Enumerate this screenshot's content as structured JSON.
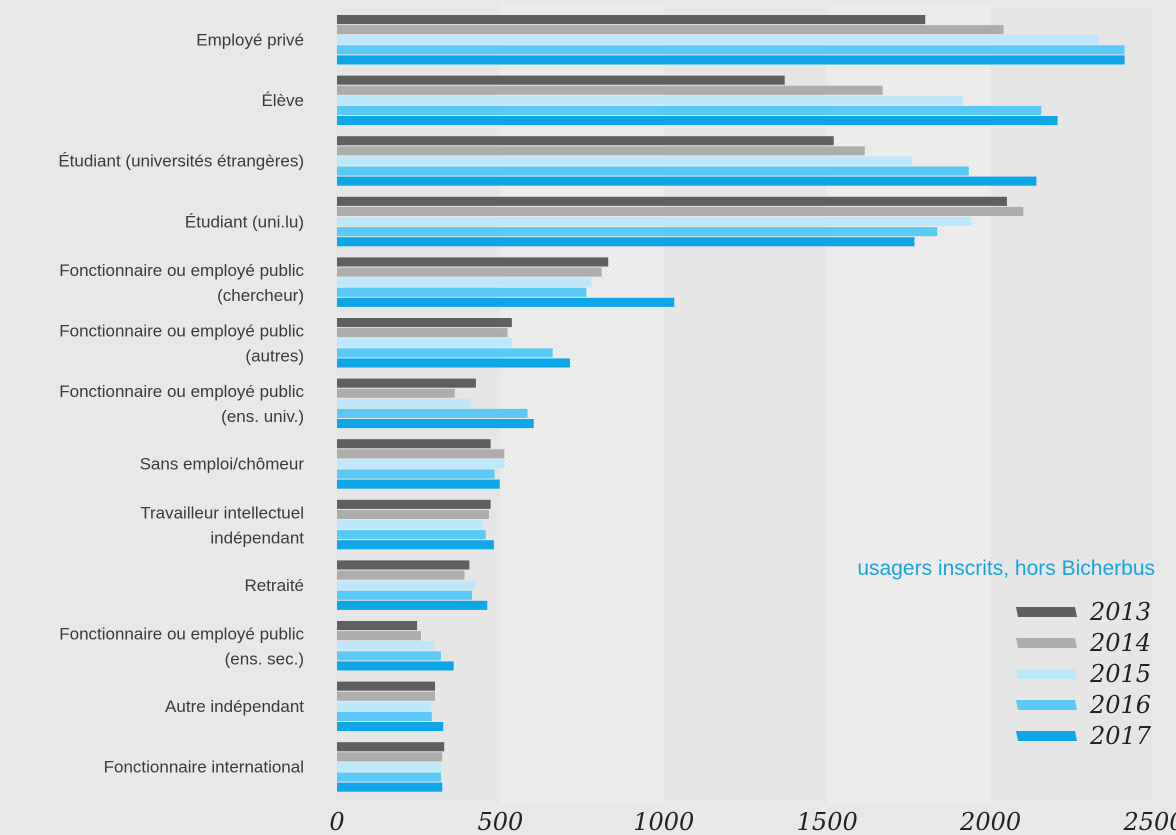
{
  "chart_data": {
    "type": "bar",
    "orientation": "horizontal",
    "caption": "usagers inscrits, hors Bicherbus",
    "title": "",
    "xlabel": "",
    "ylabel": "",
    "xlim": [
      0,
      2500
    ],
    "x_ticks": [
      0,
      500,
      1000,
      1500,
      2000,
      2500
    ],
    "x_tick_labels": [
      "0",
      "500",
      "1000",
      "1500",
      "2000",
      "2500"
    ],
    "grid": "alternating vertical bands every 500",
    "legend_position": "bottom-right",
    "categories": [
      "Employé privé",
      "Élève",
      "Étudiant (universités étrangères)",
      "Étudiant (uni.lu)",
      "Fonctionnaire ou employé public (chercheur)",
      "Fonctionnaire ou employé public (autres)",
      "Fonctionnaire ou employé public (ens. univ.)",
      "Sans emploi/chômeur",
      "Travailleur intellectuel indépendant",
      "Retraité",
      "Fonctionnaire ou employé public (ens. sec.)",
      "Autre indépendant",
      "Fonctionnaire international"
    ],
    "category_label_lines": [
      [
        "Employé privé"
      ],
      [
        "Élève"
      ],
      [
        "Étudiant (universités étrangères)"
      ],
      [
        "Étudiant (uni.lu)"
      ],
      [
        "Fonctionnaire ou employé public",
        "(chercheur)"
      ],
      [
        "Fonctionnaire ou employé public",
        "(autres)"
      ],
      [
        "Fonctionnaire ou employé public",
        "(ens. univ.)"
      ],
      [
        "Sans emploi/chômeur"
      ],
      [
        "Travailleur intellectuel",
        "indépendant"
      ],
      [
        "Retraité"
      ],
      [
        "Fonctionnaire ou employé public",
        "(ens. sec.)"
      ],
      [
        "Autre indépendant"
      ],
      [
        "Fonctionnaire international"
      ]
    ],
    "series": [
      {
        "name": "2013",
        "color": "#5f5f5f",
        "values": [
          1800,
          1370,
          1520,
          2050,
          830,
          535,
          425,
          470,
          470,
          405,
          245,
          300,
          328
        ]
      },
      {
        "name": "2014",
        "color": "#adadad",
        "values": [
          2040,
          1670,
          1615,
          2100,
          810,
          522,
          360,
          512,
          465,
          390,
          257,
          300,
          322
        ]
      },
      {
        "name": "2015",
        "color": "#bde8fb",
        "values": [
          2330,
          1915,
          1760,
          1940,
          778,
          535,
          408,
          512,
          445,
          422,
          298,
          288,
          318
        ]
      },
      {
        "name": "2016",
        "color": "#5bc9f5",
        "values": [
          2410,
          2155,
          1933,
          1837,
          763,
          660,
          583,
          482,
          455,
          413,
          318,
          290,
          318
        ]
      },
      {
        "name": "2017",
        "color": "#0fa6e8",
        "values": [
          2410,
          2205,
          2140,
          1767,
          1032,
          713,
          602,
          498,
          480,
          460,
          357,
          325,
          322
        ]
      }
    ]
  }
}
